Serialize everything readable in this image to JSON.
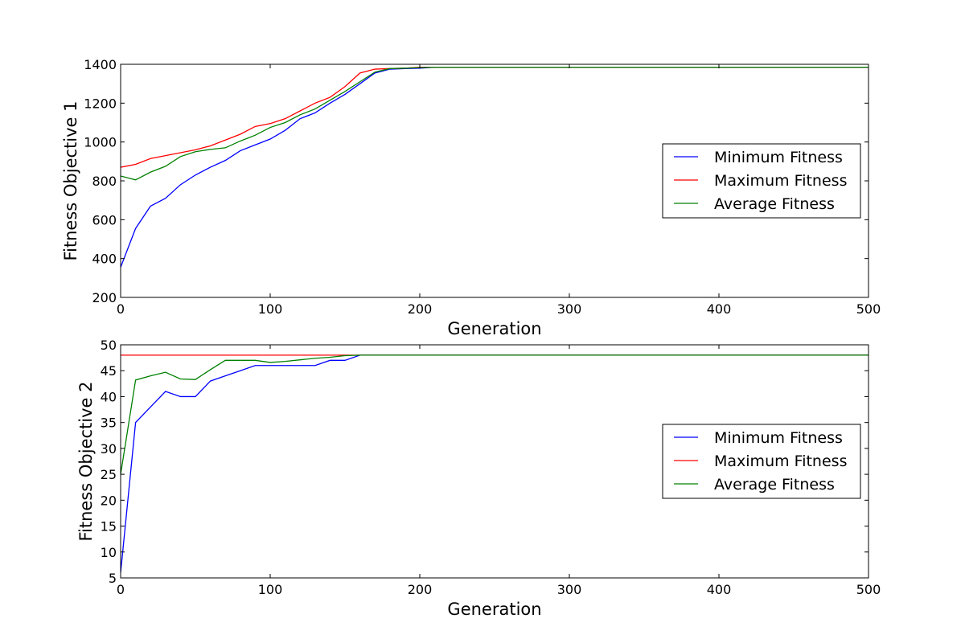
{
  "chart_data": [
    {
      "type": "line",
      "title": "",
      "xlabel": "Generation",
      "ylabel": "Fitness Objective 1",
      "xlim": [
        0,
        500
      ],
      "ylim": [
        200,
        1400
      ],
      "xticks": [
        "0",
        "100",
        "200",
        "300",
        "400",
        "500"
      ],
      "yticks": [
        "200",
        "400",
        "600",
        "800",
        "1000",
        "1200",
        "1400"
      ],
      "grid": false,
      "legend_position": "center-right",
      "series": [
        {
          "name": "Minimum Fitness",
          "color": "#0000ff",
          "x": [
            0,
            10,
            20,
            30,
            40,
            50,
            60,
            70,
            80,
            90,
            100,
            110,
            120,
            130,
            140,
            150,
            160,
            170,
            180,
            190,
            200,
            210,
            220,
            500
          ],
          "y": [
            355,
            555,
            670,
            710,
            780,
            830,
            870,
            905,
            955,
            985,
            1015,
            1060,
            1120,
            1150,
            1200,
            1245,
            1300,
            1355,
            1375,
            1378,
            1380,
            1385,
            1385,
            1385
          ]
        },
        {
          "name": "Maximum Fitness",
          "color": "#ff0000",
          "x": [
            0,
            10,
            20,
            30,
            40,
            50,
            60,
            70,
            80,
            90,
            100,
            110,
            120,
            130,
            140,
            150,
            160,
            170,
            180,
            190,
            200,
            210,
            500
          ],
          "y": [
            870,
            885,
            915,
            930,
            945,
            960,
            980,
            1010,
            1040,
            1080,
            1095,
            1120,
            1160,
            1200,
            1230,
            1285,
            1355,
            1375,
            1378,
            1380,
            1385,
            1385,
            1385
          ]
        },
        {
          "name": "Average Fitness",
          "color": "#008000",
          "x": [
            0,
            10,
            20,
            30,
            40,
            50,
            60,
            70,
            80,
            90,
            100,
            110,
            120,
            130,
            140,
            150,
            160,
            170,
            180,
            190,
            200,
            210,
            500
          ],
          "y": [
            825,
            805,
            845,
            875,
            925,
            950,
            962,
            970,
            1005,
            1035,
            1075,
            1100,
            1140,
            1170,
            1215,
            1260,
            1310,
            1360,
            1378,
            1380,
            1383,
            1385,
            1385
          ]
        }
      ]
    },
    {
      "type": "line",
      "title": "",
      "xlabel": "Generation",
      "ylabel": "Fitness Objective 2",
      "xlim": [
        0,
        500
      ],
      "ylim": [
        5,
        50
      ],
      "xticks": [
        "0",
        "100",
        "200",
        "300",
        "400",
        "500"
      ],
      "yticks": [
        "5",
        "10",
        "15",
        "20",
        "25",
        "30",
        "35",
        "40",
        "45",
        "50"
      ],
      "grid": false,
      "legend_position": "center-right",
      "series": [
        {
          "name": "Minimum Fitness",
          "color": "#0000ff",
          "x": [
            0,
            10,
            20,
            30,
            40,
            50,
            60,
            70,
            80,
            90,
            100,
            110,
            120,
            130,
            140,
            150,
            160,
            500
          ],
          "y": [
            6,
            35,
            38,
            41,
            40,
            40,
            43,
            44,
            45,
            46,
            46,
            46,
            46,
            46,
            47,
            47,
            48,
            48
          ]
        },
        {
          "name": "Maximum Fitness",
          "color": "#ff0000",
          "x": [
            0,
            500
          ],
          "y": [
            48,
            48
          ]
        },
        {
          "name": "Average Fitness",
          "color": "#008000",
          "x": [
            0,
            10,
            20,
            30,
            40,
            50,
            60,
            70,
            80,
            90,
            100,
            110,
            120,
            130,
            140,
            150,
            160,
            500
          ],
          "y": [
            25,
            43.2,
            44,
            44.7,
            43.4,
            43.3,
            45.2,
            47,
            47,
            47,
            46.6,
            46.8,
            47.1,
            47.4,
            47.6,
            47.9,
            48,
            48
          ]
        }
      ]
    }
  ]
}
